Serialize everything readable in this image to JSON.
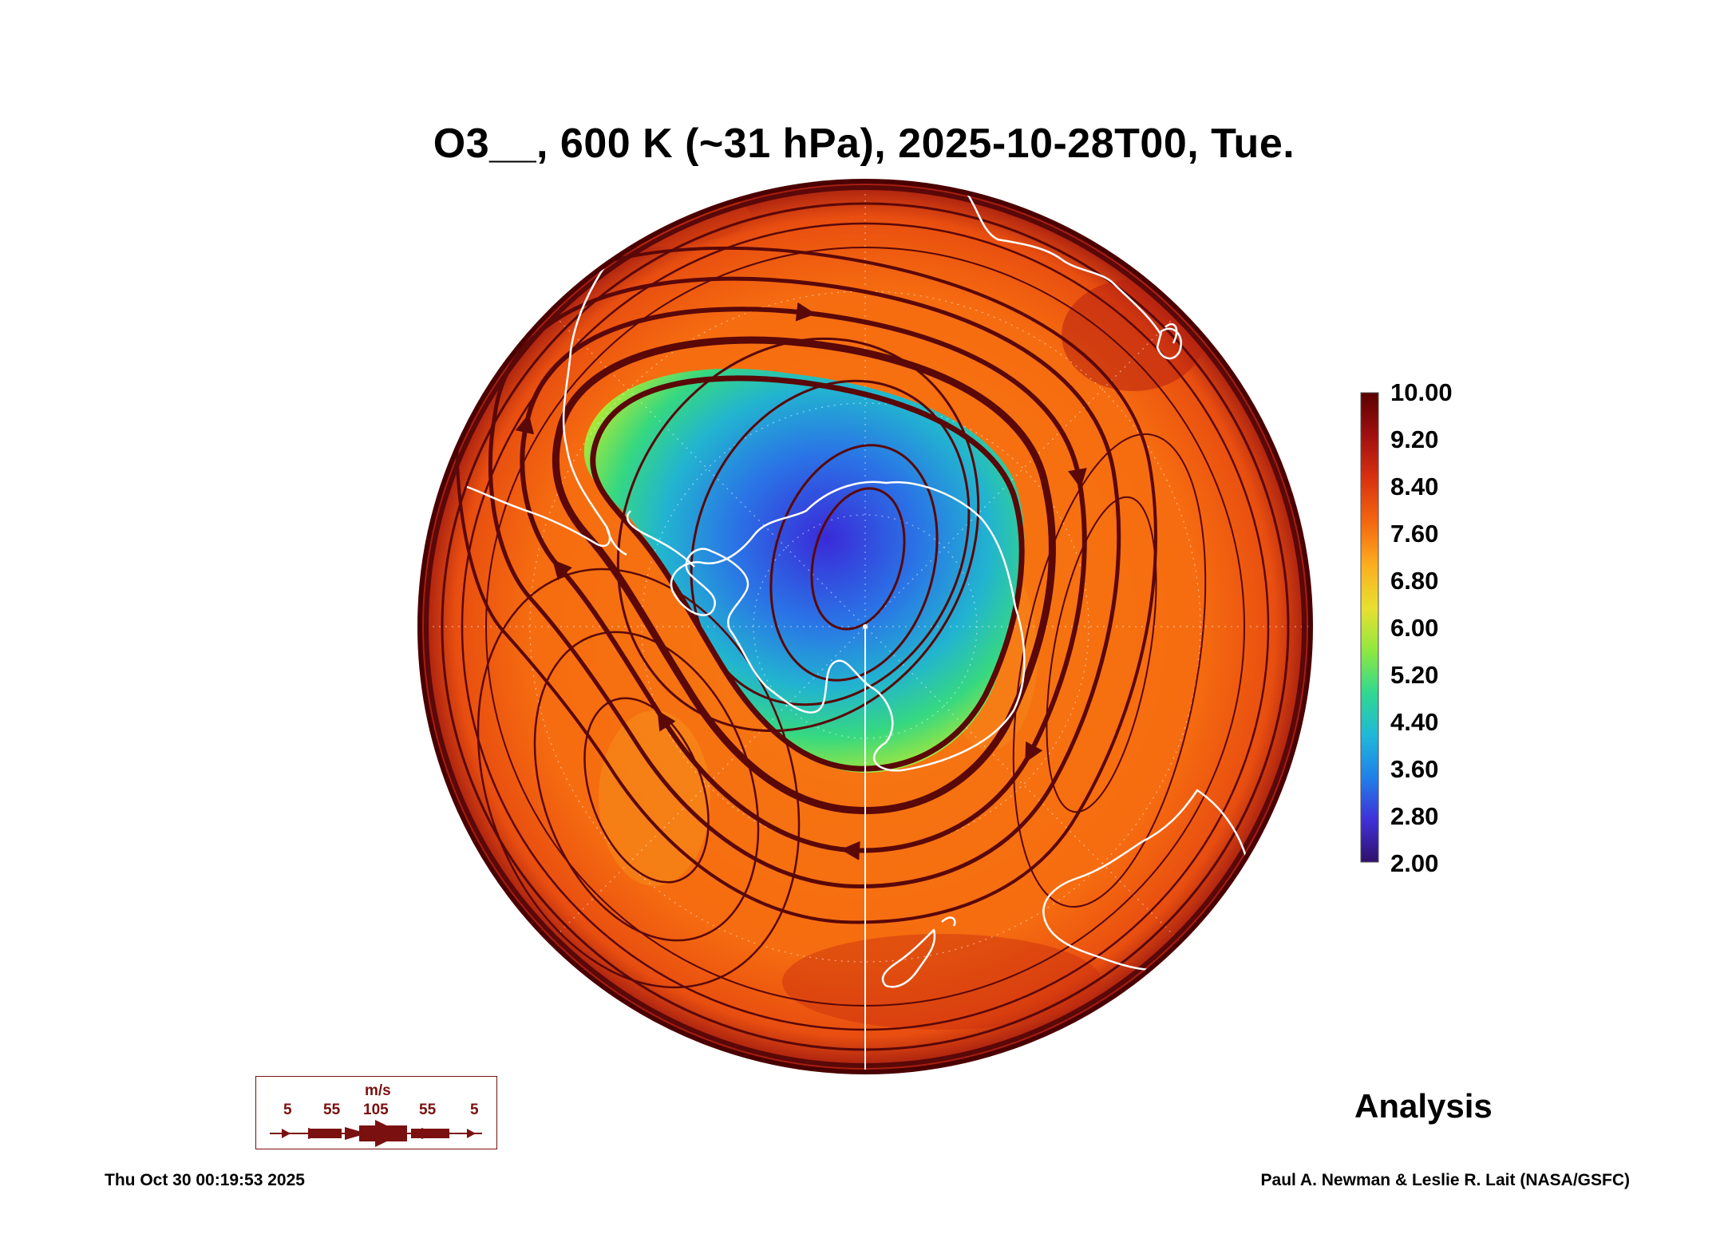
{
  "title": "O3__, 600 K (~31 hPa), 2025-10-28T00, Tue.",
  "colorbar": {
    "labels": [
      "10.00",
      "9.20",
      "8.40",
      "7.60",
      "6.80",
      "6.00",
      "5.20",
      "4.40",
      "3.60",
      "2.80",
      "2.00"
    ],
    "colors": [
      "#5a0000",
      "#a01010",
      "#d83010",
      "#f56a10",
      "#fbb020",
      "#e8e030",
      "#8ee840",
      "#30d890",
      "#20b8d8",
      "#2080e8",
      "#4030d8",
      "#30106a"
    ]
  },
  "legend": {
    "unit": "m/s",
    "speeds": [
      "5",
      "55",
      "105",
      "55",
      "5"
    ],
    "color": "#7a1010"
  },
  "analysis_label": "Analysis",
  "footer": {
    "timestamp": "Thu Oct 30 00:19:53 2025",
    "credit": "Paul A. Newman & Leslie R. Lait (NASA/GSFC)"
  }
}
